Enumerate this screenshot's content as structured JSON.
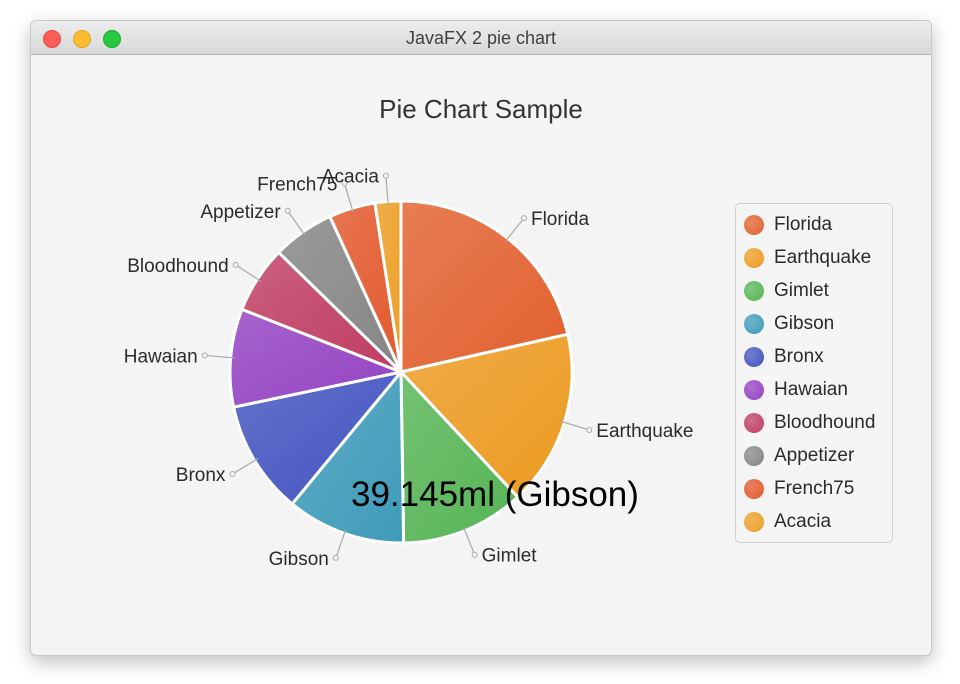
{
  "window": {
    "title": "JavaFX 2 pie chart"
  },
  "chart_data": {
    "type": "pie",
    "title": "Pie Chart Sample",
    "slices": [
      {
        "name": "Florida",
        "value": 22,
        "color": "#e2602e"
      },
      {
        "name": "Earthquake",
        "value": 17,
        "color": "#ec9a20"
      },
      {
        "name": "Gimlet",
        "value": 12,
        "color": "#55b454"
      },
      {
        "name": "Gibson",
        "value": 11.5,
        "color": "#3e9bb9"
      },
      {
        "name": "Bronx",
        "value": 11,
        "color": "#4253bf"
      },
      {
        "name": "Hawaian",
        "value": 9.5,
        "color": "#9442c2"
      },
      {
        "name": "Bloodhound",
        "value": 6.5,
        "color": "#bf3d62"
      },
      {
        "name": "Appetizer",
        "value": 6,
        "color": "#858585"
      },
      {
        "name": "French75",
        "value": 4.5,
        "color": "#e2582c"
      },
      {
        "name": "Acacia",
        "value": 2.5,
        "color": "#ec9e25"
      }
    ],
    "legend_position": "right",
    "tooltip": "39.145ml (Gibson)"
  }
}
